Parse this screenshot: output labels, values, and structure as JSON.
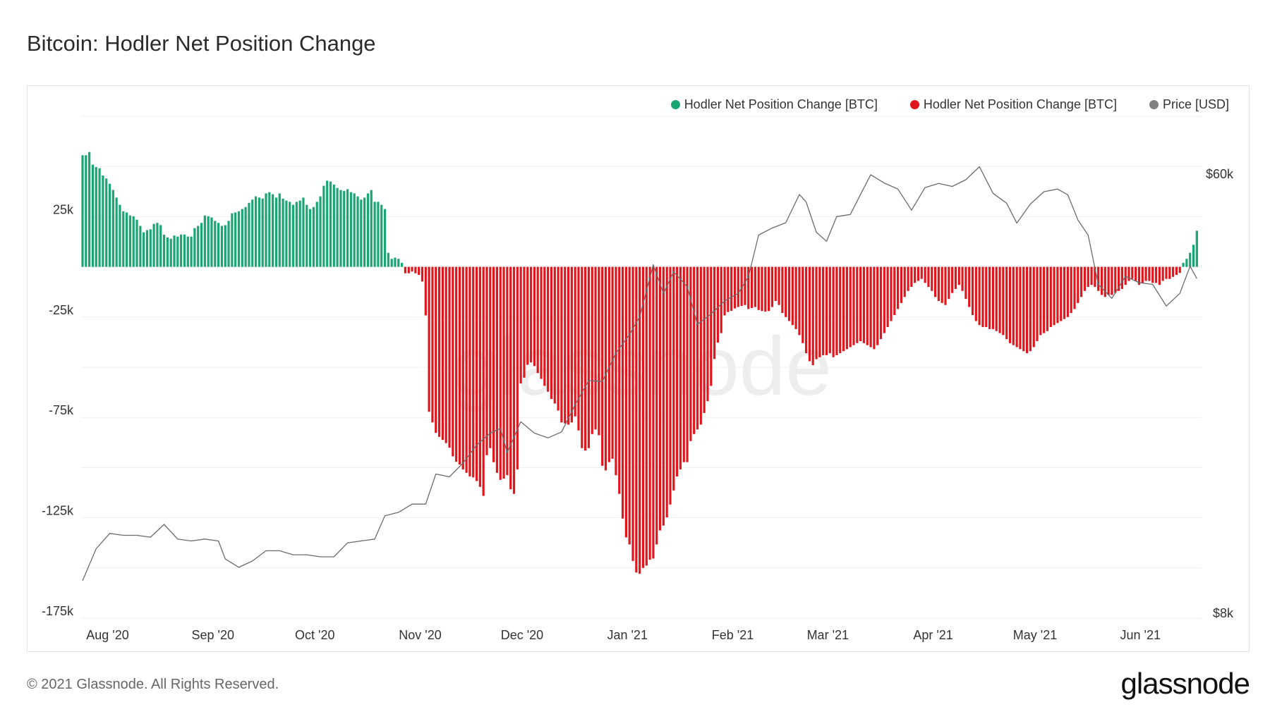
{
  "title": "Bitcoin: Hodler Net Position Change",
  "footer": "© 2021 Glassnode. All Rights Reserved.",
  "logo": "glassnode",
  "watermark": "glassnode",
  "legend": [
    {
      "label": "Hodler Net Position Change [BTC]",
      "color": "#1aa673"
    },
    {
      "label": "Hodler Net Position Change [BTC]",
      "color": "#e0161d"
    },
    {
      "label": "Price [USD]",
      "color": "#808080"
    }
  ],
  "chart_data": {
    "type": "bar+line",
    "title": "Bitcoin: Hodler Net Position Change",
    "grid": true,
    "legend_position": "top-right",
    "x_ticks": [
      {
        "label": "Aug '20",
        "date": "2020-08-01"
      },
      {
        "label": "Sep '20",
        "date": "2020-09-01"
      },
      {
        "label": "Oct '20",
        "date": "2020-10-01"
      },
      {
        "label": "Nov '20",
        "date": "2020-11-01"
      },
      {
        "label": "Dec '20",
        "date": "2020-12-01"
      },
      {
        "label": "Jan '21",
        "date": "2021-01-01"
      },
      {
        "label": "Feb '21",
        "date": "2021-02-01"
      },
      {
        "label": "Mar '21",
        "date": "2021-03-01"
      },
      {
        "label": "Apr '21",
        "date": "2021-04-01"
      },
      {
        "label": "May '21",
        "date": "2021-05-01"
      },
      {
        "label": "Jun '21",
        "date": "2021-06-01"
      }
    ],
    "y_left": {
      "ylim": [
        -175000,
        75000
      ],
      "ticks": [
        {
          "label": "25k",
          "value": 25000
        },
        {
          "label": "-25k",
          "value": -25000
        },
        {
          "label": "-75k",
          "value": -75000
        },
        {
          "label": "-125k",
          "value": -125000
        },
        {
          "label": "-175k",
          "value": -175000
        }
      ],
      "grid_step": 25000
    },
    "y_right": {
      "scale": "log",
      "ylim": [
        8000,
        60000
      ],
      "ticks": [
        {
          "label": "$60k",
          "value": 60000
        },
        {
          "label": "$8k",
          "value": 8000
        }
      ]
    },
    "bars": {
      "name": "Hodler Net Position Change [BTC]",
      "positive_color": "#1aa673",
      "negative_color": "#e0161d",
      "start_date": "2020-07-24",
      "step": "1 day",
      "values": [
        55600,
        55600,
        57200,
        50900,
        49700,
        49100,
        45500,
        44000,
        41400,
        38300,
        34500,
        30900,
        27700,
        27100,
        25600,
        25200,
        23500,
        20400,
        17200,
        18300,
        18700,
        21400,
        21900,
        20800,
        16000,
        14600,
        14000,
        15600,
        15100,
        16100,
        16100,
        15100,
        15100,
        19300,
        20400,
        21900,
        25600,
        25200,
        24600,
        22900,
        21900,
        20400,
        20800,
        22900,
        26700,
        27100,
        27700,
        28800,
        29800,
        31900,
        33500,
        35100,
        34500,
        34000,
        36600,
        37200,
        36200,
        34500,
        36600,
        34000,
        33000,
        32400,
        30900,
        32400,
        33000,
        34500,
        30900,
        28800,
        29800,
        32400,
        35100,
        40400,
        42900,
        42500,
        41000,
        39300,
        38300,
        37800,
        38700,
        37200,
        36600,
        35100,
        33500,
        34500,
        36600,
        38300,
        32400,
        32400,
        30900,
        28800,
        7000,
        4000,
        4600,
        4000,
        2000,
        -3200,
        -3200,
        -2300,
        -3200,
        -4000,
        -7300,
        -24200,
        -72200,
        -77500,
        -82700,
        -84700,
        -86200,
        -87800,
        -90100,
        -94400,
        -97100,
        -98500,
        -100900,
        -102600,
        -104400,
        -104900,
        -106700,
        -109600,
        -114100,
        -93800,
        -90300,
        -97300,
        -102600,
        -106100,
        -105500,
        -103800,
        -110800,
        -113100,
        -100900,
        -58100,
        -55200,
        -48800,
        -47600,
        -49400,
        -52900,
        -55800,
        -59300,
        -62200,
        -65800,
        -68100,
        -71600,
        -77500,
        -78000,
        -78600,
        -77500,
        -74500,
        -81500,
        -90300,
        -91500,
        -90300,
        -83300,
        -81000,
        -83900,
        -99100,
        -101400,
        -97300,
        -95600,
        -103800,
        -113100,
        -125400,
        -134800,
        -138300,
        -146500,
        -152300,
        -152900,
        -150000,
        -148800,
        -145900,
        -145300,
        -138300,
        -131300,
        -128900,
        -124800,
        -118400,
        -111400,
        -104400,
        -100900,
        -97300,
        -97300,
        -86800,
        -83300,
        -81000,
        -78600,
        -72800,
        -66900,
        -59300,
        -45900,
        -37700,
        -33000,
        -24200,
        -22500,
        -21900,
        -20700,
        -20000,
        -19500,
        -19000,
        -21000,
        -20500,
        -20000,
        -21500,
        -22000,
        -22300,
        -22000,
        -20000,
        -17000,
        -19000,
        -23000,
        -25000,
        -27000,
        -29000,
        -31000,
        -34000,
        -38000,
        -43000,
        -47000,
        -49000,
        -46000,
        -45000,
        -44000,
        -44000,
        -43000,
        -45000,
        -44000,
        -43000,
        -42000,
        -41000,
        -40000,
        -39000,
        -38000,
        -37000,
        -38000,
        -39000,
        -40000,
        -41000,
        -39000,
        -36000,
        -33000,
        -30000,
        -27000,
        -24000,
        -21000,
        -18000,
        -15000,
        -12000,
        -10000,
        -8000,
        -7000,
        -6000,
        -8000,
        -10000,
        -12000,
        -15000,
        -17000,
        -18000,
        -19000,
        -16000,
        -13000,
        -11000,
        -9000,
        -12000,
        -16000,
        -20000,
        -24000,
        -27000,
        -29000,
        -30000,
        -30000,
        -31000,
        -31000,
        -32000,
        -33000,
        -34000,
        -36000,
        -38000,
        -39000,
        -40000,
        -41000,
        -42000,
        -43000,
        -42000,
        -40000,
        -37000,
        -34000,
        -33000,
        -32000,
        -30000,
        -29000,
        -28000,
        -27000,
        -26000,
        -25000,
        -23000,
        -21000,
        -18000,
        -15000,
        -12000,
        -10000,
        -9000,
        -10000,
        -12000,
        -14000,
        -15000,
        -14000,
        -14000,
        -13000,
        -12000,
        -11000,
        -9000,
        -7000,
        -6000,
        -7000,
        -9000,
        -8000,
        -7000,
        -7000,
        -8000,
        -8000,
        -9000,
        -7000,
        -6000,
        -6000,
        -5000,
        -4000,
        -3000,
        2000,
        4000,
        7000,
        11000,
        18000
      ]
    },
    "price": {
      "name": "Price [USD]",
      "color": "#808080",
      "points": [
        [
          "2020-07-24",
          9500
        ],
        [
          "2020-07-28",
          11000
        ],
        [
          "2020-08-01",
          11800
        ],
        [
          "2020-08-05",
          11700
        ],
        [
          "2020-08-09",
          11700
        ],
        [
          "2020-08-13",
          11600
        ],
        [
          "2020-08-17",
          12300
        ],
        [
          "2020-08-21",
          11500
        ],
        [
          "2020-08-25",
          11400
        ],
        [
          "2020-08-29",
          11500
        ],
        [
          "2020-09-02",
          11400
        ],
        [
          "2020-09-04",
          10500
        ],
        [
          "2020-09-08",
          10100
        ],
        [
          "2020-09-12",
          10400
        ],
        [
          "2020-09-16",
          10900
        ],
        [
          "2020-09-20",
          10900
        ],
        [
          "2020-09-24",
          10700
        ],
        [
          "2020-09-28",
          10700
        ],
        [
          "2020-10-02",
          10600
        ],
        [
          "2020-10-06",
          10600
        ],
        [
          "2020-10-10",
          11300
        ],
        [
          "2020-10-14",
          11400
        ],
        [
          "2020-10-18",
          11500
        ],
        [
          "2020-10-21",
          12800
        ],
        [
          "2020-10-25",
          13000
        ],
        [
          "2020-10-29",
          13500
        ],
        [
          "2020-11-02",
          13500
        ],
        [
          "2020-11-05",
          15500
        ],
        [
          "2020-11-09",
          15300
        ],
        [
          "2020-11-13",
          16300
        ],
        [
          "2020-11-17",
          17700
        ],
        [
          "2020-11-21",
          18700
        ],
        [
          "2020-11-24",
          19100
        ],
        [
          "2020-11-26",
          17100
        ],
        [
          "2020-11-30",
          19700
        ],
        [
          "2020-12-04",
          18700
        ],
        [
          "2020-12-08",
          18300
        ],
        [
          "2020-12-12",
          18800
        ],
        [
          "2020-12-16",
          21300
        ],
        [
          "2020-12-20",
          23800
        ],
        [
          "2020-12-24",
          23700
        ],
        [
          "2020-12-28",
          27000
        ],
        [
          "2021-01-01",
          29400
        ],
        [
          "2021-01-04",
          31900
        ],
        [
          "2021-01-08",
          40500
        ],
        [
          "2021-01-11",
          35500
        ],
        [
          "2021-01-14",
          39200
        ],
        [
          "2021-01-18",
          36600
        ],
        [
          "2021-01-21",
          30800
        ],
        [
          "2021-01-25",
          32300
        ],
        [
          "2021-01-29",
          34300
        ],
        [
          "2021-02-02",
          35500
        ],
        [
          "2021-02-05",
          38300
        ],
        [
          "2021-02-08",
          46400
        ],
        [
          "2021-02-12",
          47900
        ],
        [
          "2021-02-16",
          49100
        ],
        [
          "2021-02-20",
          55900
        ],
        [
          "2021-02-22",
          54000
        ],
        [
          "2021-02-25",
          47000
        ],
        [
          "2021-02-28",
          45100
        ],
        [
          "2021-03-03",
          50500
        ],
        [
          "2021-03-07",
          51000
        ],
        [
          "2021-03-10",
          55900
        ],
        [
          "2021-03-13",
          61200
        ],
        [
          "2021-03-17",
          58900
        ],
        [
          "2021-03-21",
          57300
        ],
        [
          "2021-03-25",
          52000
        ],
        [
          "2021-03-29",
          57700
        ],
        [
          "2021-04-02",
          58800
        ],
        [
          "2021-04-06",
          58000
        ],
        [
          "2021-04-10",
          59800
        ],
        [
          "2021-04-14",
          63500
        ],
        [
          "2021-04-18",
          56200
        ],
        [
          "2021-04-22",
          53700
        ],
        [
          "2021-04-25",
          49000
        ],
        [
          "2021-04-29",
          53500
        ],
        [
          "2021-05-03",
          56600
        ],
        [
          "2021-05-07",
          57300
        ],
        [
          "2021-05-10",
          55800
        ],
        [
          "2021-05-13",
          49700
        ],
        [
          "2021-05-16",
          46400
        ],
        [
          "2021-05-19",
          37000
        ],
        [
          "2021-05-23",
          34700
        ],
        [
          "2021-05-27",
          38400
        ],
        [
          "2021-05-31",
          37300
        ],
        [
          "2021-06-04",
          37000
        ],
        [
          "2021-06-08",
          33500
        ],
        [
          "2021-06-12",
          35500
        ],
        [
          "2021-06-15",
          40200
        ],
        [
          "2021-06-17",
          38000
        ]
      ]
    }
  }
}
